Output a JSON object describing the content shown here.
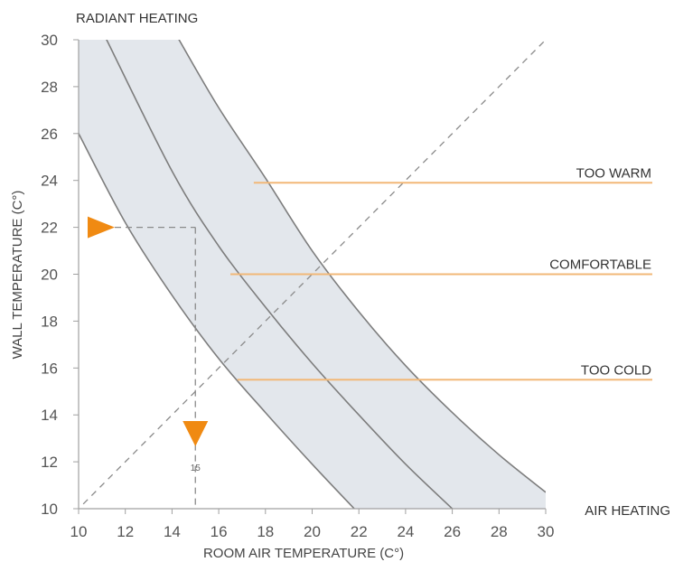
{
  "chart_data": {
    "type": "line",
    "title": "",
    "xlabel": "ROOM AIR TEMPERATURE (C°)",
    "ylabel": "WALL TEMPERATURE (C°)",
    "xlim": [
      10,
      30
    ],
    "ylim": [
      10,
      30
    ],
    "xticks": [
      10,
      12,
      14,
      16,
      18,
      20,
      22,
      24,
      26,
      28,
      30
    ],
    "yticks": [
      10,
      12,
      14,
      16,
      18,
      20,
      22,
      24,
      26,
      28,
      30
    ],
    "grid": false,
    "corner_labels": {
      "top": "RADIANT HEATING",
      "bottom_right": "AIR HEATING"
    },
    "series": [
      {
        "x": [
          10,
          12,
          14,
          16,
          18,
          20,
          21.8
        ],
        "y": [
          26,
          22.2,
          19.1,
          16.4,
          14.1,
          11.9,
          10
        ]
      },
      {
        "x": [
          11.2,
          14,
          16,
          18,
          20,
          22,
          24,
          26
        ],
        "y": [
          30,
          24.4,
          21.2,
          18.6,
          16.2,
          14.0,
          11.9,
          10
        ]
      },
      {
        "x": [
          14.3,
          16,
          18,
          20,
          22,
          24,
          26,
          28,
          30
        ],
        "y": [
          30,
          27.1,
          24.1,
          21.0,
          18.4,
          16.1,
          14.1,
          12.3,
          10.7
        ]
      }
    ],
    "reference_lines": [
      {
        "label": "TOO WARM",
        "y": 23.9,
        "x_start": 17.5
      },
      {
        "label": "COMFORTABLE",
        "y": 20.0,
        "x_start": 16.5
      },
      {
        "label": "TOO COLD",
        "y": 15.5,
        "x_start": 16.8
      }
    ],
    "diagonal": {
      "x": [
        10.2,
        30.2
      ],
      "y": [
        10.2,
        30.2
      ]
    },
    "example": {
      "wall_temperature": 22,
      "room_air_temperature": 15,
      "marker_label": "15"
    },
    "colors": {
      "band_fill": "#e3e7ec",
      "curve": "#7d7d7d",
      "reference_line": "#f2b878",
      "marker": "#f08a12",
      "dashed": "#8a8a8a",
      "axis": "#a0a0a0"
    }
  }
}
